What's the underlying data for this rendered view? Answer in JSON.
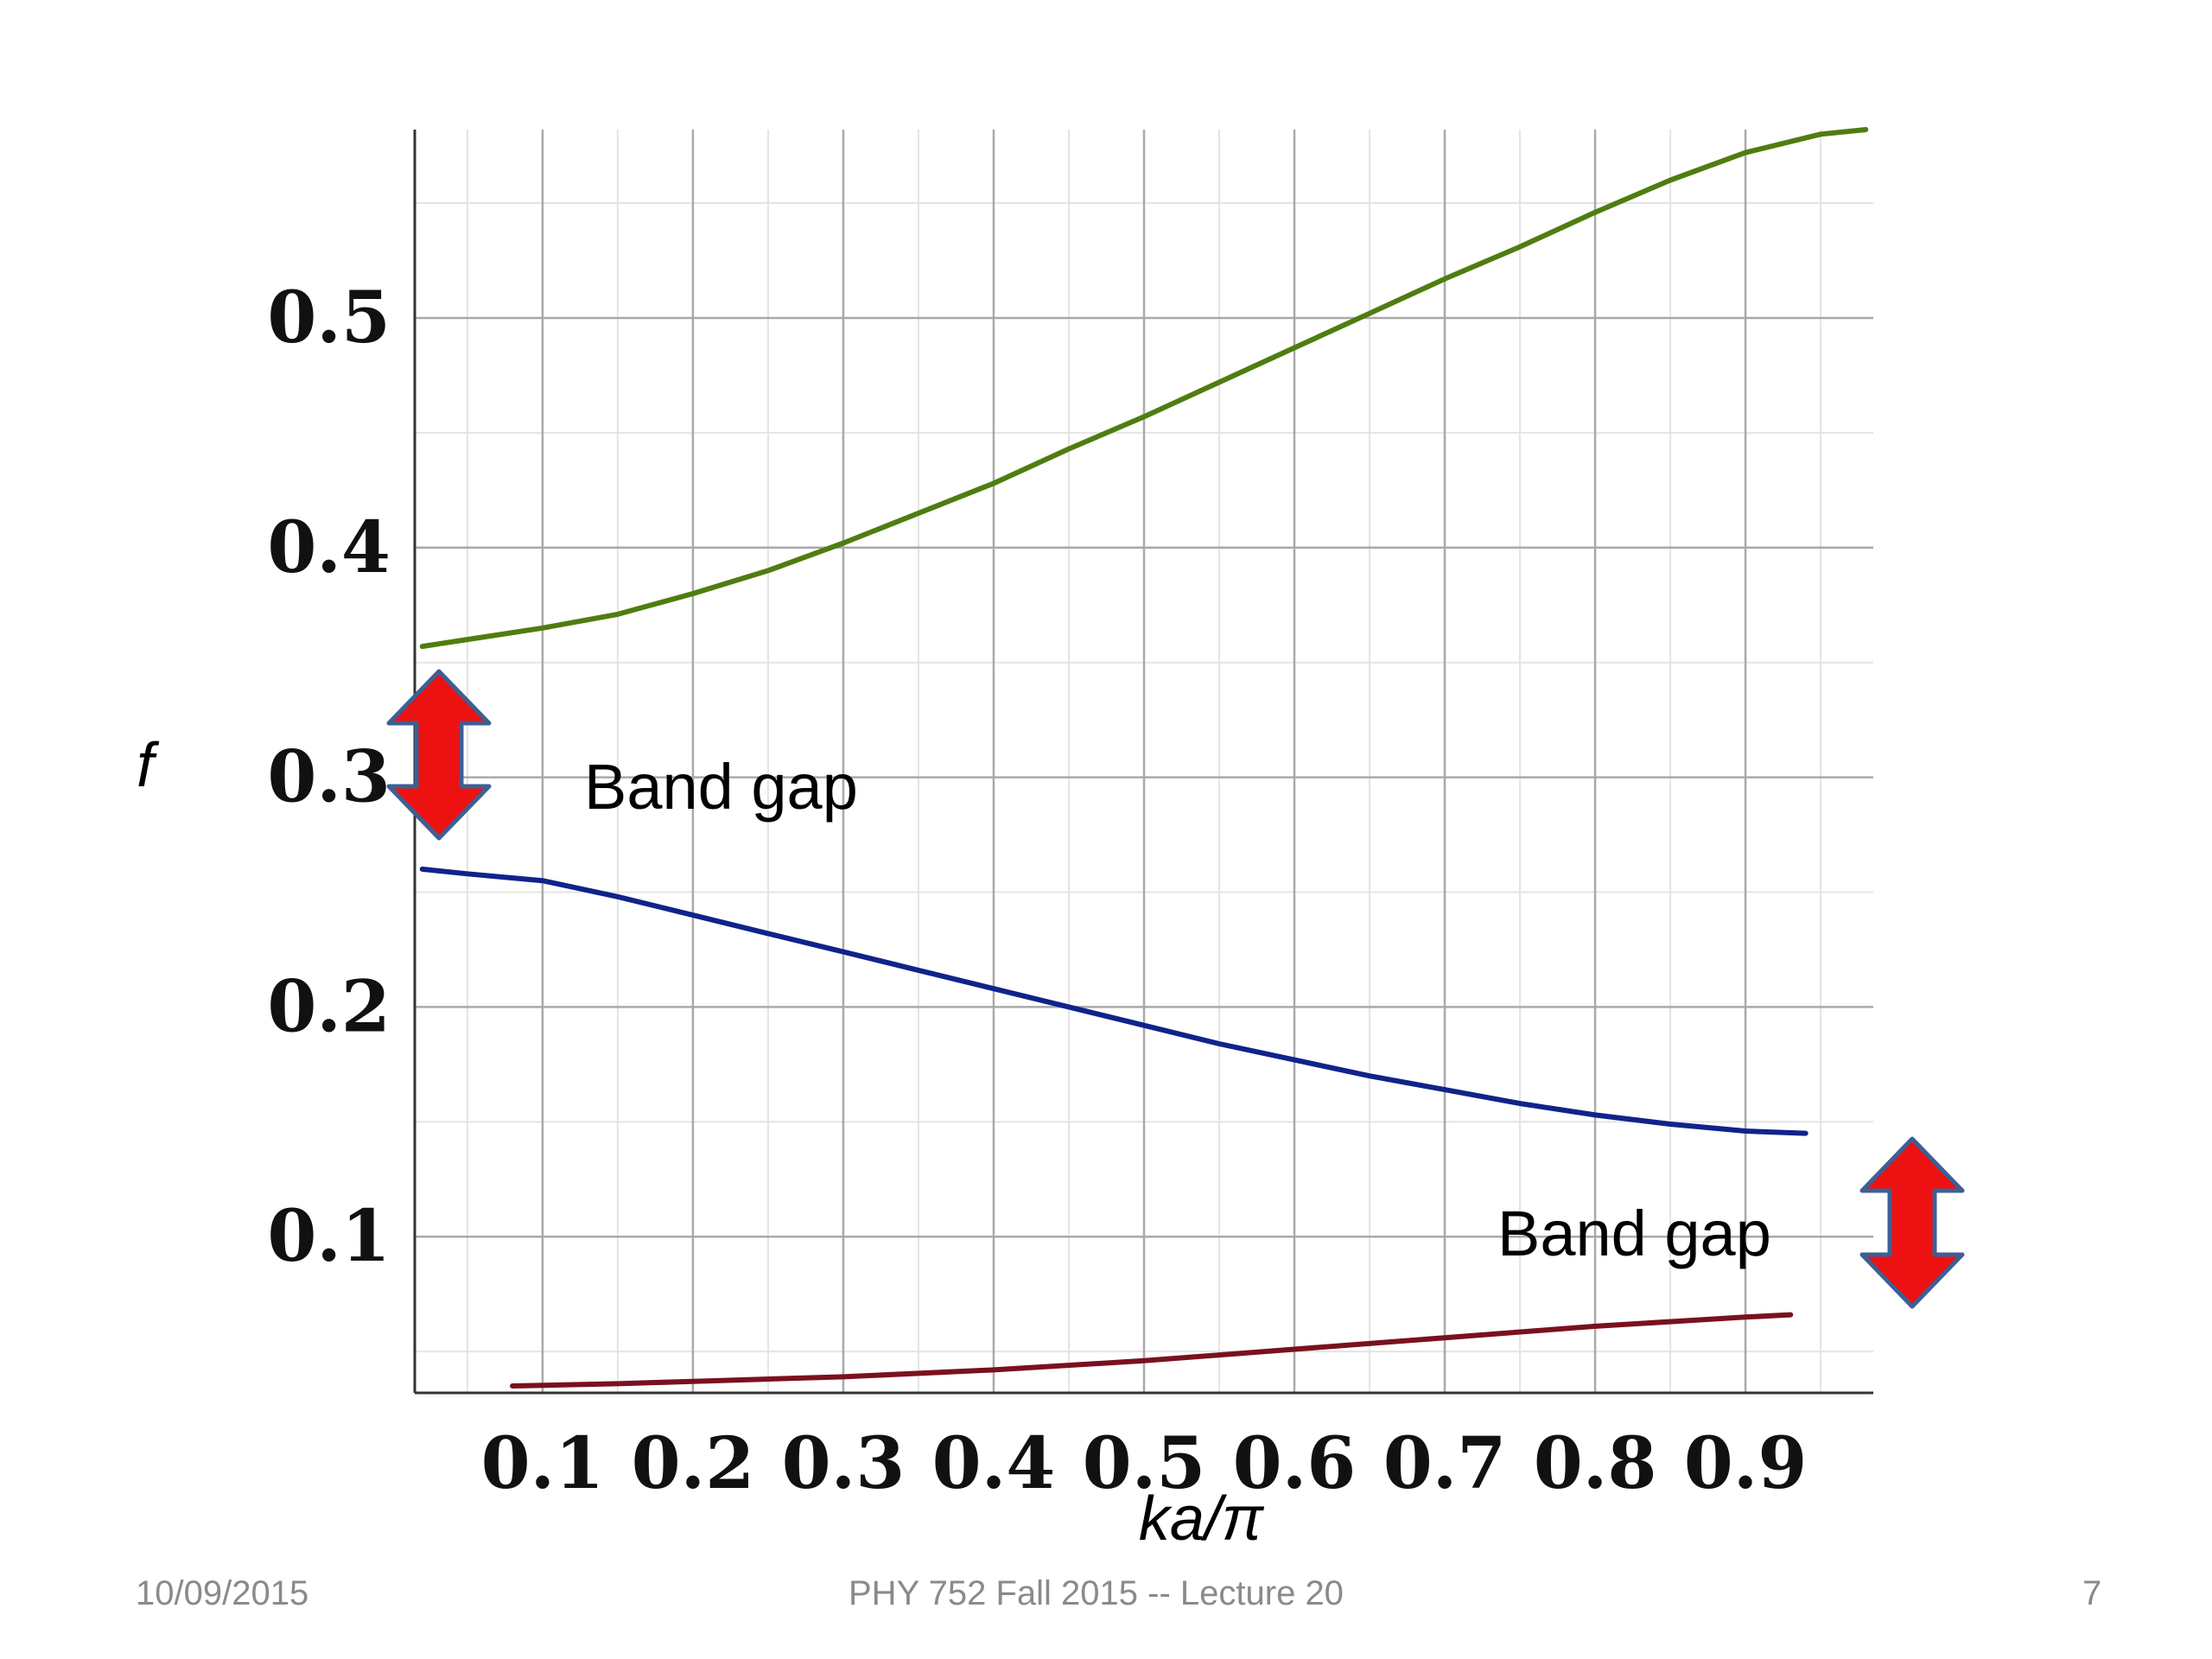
{
  "chart_data": {
    "type": "line",
    "xlabel": "ka/π",
    "ylabel": "f",
    "xlim": [
      0.015,
      0.985
    ],
    "ylim": [
      0.032,
      0.582
    ],
    "x_ticks": [
      "0.1",
      "0.2",
      "0.3",
      "0.4",
      "0.5",
      "0.6",
      "0.7",
      "0.8",
      "0.9"
    ],
    "y_ticks": [
      "0.1",
      "0.2",
      "0.3",
      "0.4",
      "0.5"
    ],
    "grid": true,
    "series": [
      {
        "color": "#4f7d10",
        "x": [
          0.02,
          0.05,
          0.1,
          0.15,
          0.2,
          0.25,
          0.3,
          0.35,
          0.4,
          0.45,
          0.5,
          0.55,
          0.6,
          0.65,
          0.7,
          0.75,
          0.8,
          0.85,
          0.9,
          0.95,
          0.98
        ],
        "y": [
          0.357,
          0.36,
          0.365,
          0.371,
          0.38,
          0.39,
          0.402,
          0.415,
          0.428,
          0.443,
          0.457,
          0.472,
          0.487,
          0.502,
          0.517,
          0.531,
          0.546,
          0.56,
          0.572,
          0.58,
          0.582
        ]
      },
      {
        "color": "#10238a",
        "x": [
          0.02,
          0.05,
          0.1,
          0.15,
          0.2,
          0.25,
          0.3,
          0.35,
          0.4,
          0.45,
          0.5,
          0.55,
          0.6,
          0.65,
          0.7,
          0.75,
          0.8,
          0.85,
          0.9,
          0.94
        ],
        "y": [
          0.26,
          0.258,
          0.255,
          0.248,
          0.24,
          0.232,
          0.224,
          0.216,
          0.208,
          0.2,
          0.192,
          0.184,
          0.177,
          0.17,
          0.164,
          0.158,
          0.153,
          0.149,
          0.146,
          0.145
        ]
      },
      {
        "color": "#7a1020",
        "x": [
          0.08,
          0.15,
          0.2,
          0.3,
          0.4,
          0.5,
          0.6,
          0.7,
          0.8,
          0.9,
          0.93
        ],
        "y": [
          0.035,
          0.036,
          0.037,
          0.039,
          0.042,
          0.046,
          0.051,
          0.056,
          0.061,
          0.065,
          0.066
        ]
      }
    ],
    "annotations": [
      {
        "text": "Band gap",
        "near": "left band gap between 0.26 and 0.357"
      },
      {
        "text": "Band gap",
        "near": "right band gap between 0.066 and 0.145"
      }
    ],
    "arrow_color": "#ee1111"
  },
  "footer": {
    "date": "10/09/2015",
    "course": "PHY 752  Fall 2015 -- Lecture 20",
    "page": "7"
  }
}
